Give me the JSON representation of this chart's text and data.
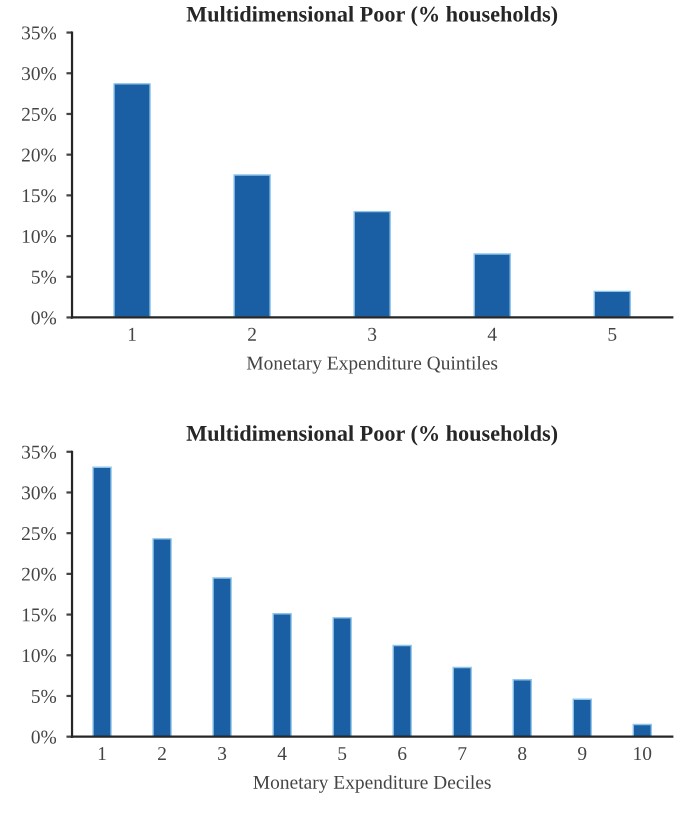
{
  "chart_data": [
    {
      "type": "bar",
      "title": "Multidimensional Poor (% households)",
      "xlabel": "Monetary Expenditure Quintiles",
      "categories": [
        "1",
        "2",
        "3",
        "4",
        "5"
      ],
      "values": [
        28.7,
        17.5,
        13.0,
        7.8,
        3.2
      ],
      "color": "#1a5fa3",
      "ylim": [
        0,
        35
      ],
      "yticks": [
        {
          "value": 0,
          "label": "0%"
        },
        {
          "value": 5,
          "label": "5%"
        },
        {
          "value": 10,
          "label": "10%"
        },
        {
          "value": 15,
          "label": "15%"
        },
        {
          "value": 20,
          "label": "20%"
        },
        {
          "value": 25,
          "label": "25%"
        },
        {
          "value": 30,
          "label": "30%"
        },
        {
          "value": 35,
          "label": "35%"
        }
      ],
      "grid": false,
      "legend": false
    },
    {
      "type": "bar",
      "title": "Multidimensional Poor (% households)",
      "xlabel": "Monetary Expenditure Deciles",
      "categories": [
        "1",
        "2",
        "3",
        "4",
        "5",
        "6",
        "7",
        "8",
        "9",
        "10"
      ],
      "values": [
        33.1,
        24.3,
        19.5,
        15.1,
        14.6,
        11.2,
        8.5,
        7.0,
        4.6,
        1.5
      ],
      "color": "#1a5fa3",
      "ylim": [
        0,
        35
      ],
      "yticks": [
        {
          "value": 0,
          "label": "0%"
        },
        {
          "value": 5,
          "label": "5%"
        },
        {
          "value": 10,
          "label": "10%"
        },
        {
          "value": 15,
          "label": "15%"
        },
        {
          "value": 20,
          "label": "20%"
        },
        {
          "value": 25,
          "label": "25%"
        },
        {
          "value": 30,
          "label": "30%"
        },
        {
          "value": 35,
          "label": "35%"
        }
      ],
      "grid": false,
      "legend": false
    }
  ]
}
